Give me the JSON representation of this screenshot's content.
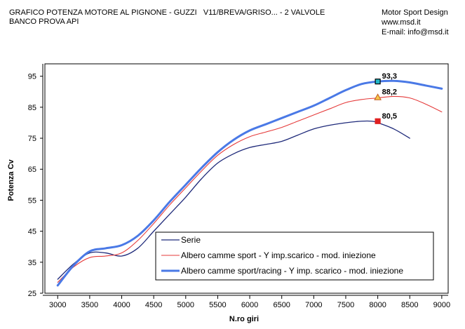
{
  "header": {
    "title_line1": "GRAFICO POTENZA MOTORE AL PIGNONE - GUZZI",
    "title_models": "V11/BREVA/GRISO... - 2 VALVOLE",
    "title_line2": "BANCO PROVA API",
    "company": "Motor Sport Design",
    "website": "www.msd.it",
    "email": "E-mail: info@msd.it"
  },
  "chart_data": {
    "type": "line",
    "title": "",
    "xlabel": "N.ro giri",
    "ylabel": "Potenza Cv",
    "xlim": [
      2800,
      9100
    ],
    "ylim": [
      25,
      99
    ],
    "xticks": [
      3000,
      3500,
      4000,
      4500,
      5000,
      5500,
      6000,
      6500,
      7000,
      7500,
      8000,
      8500,
      9000
    ],
    "yticks": [
      25,
      35,
      45,
      55,
      65,
      75,
      85,
      95
    ],
    "grid": false,
    "legend_position": "bottom-right",
    "series": [
      {
        "name": "Serie",
        "color": "#1f2a7a",
        "width": 1.3,
        "x": [
          3000,
          3250,
          3500,
          3750,
          4000,
          4250,
          4500,
          4750,
          5000,
          5250,
          5500,
          5750,
          6000,
          6250,
          6500,
          6750,
          7000,
          7250,
          7500,
          7750,
          7900,
          8000,
          8250,
          8500
        ],
        "y": [
          29.5,
          34.5,
          38,
          38,
          37,
          39.5,
          45,
          50.5,
          56,
          62,
          67,
          70,
          72,
          73,
          74,
          76,
          78,
          79.2,
          80,
          80.5,
          80.5,
          80,
          78,
          75
        ]
      },
      {
        "name": "Albero camme sport - Y imp.scarico - mod. iniezione",
        "color": "#e53a3a",
        "width": 1.1,
        "x": [
          3000,
          3250,
          3500,
          3750,
          4000,
          4250,
          4500,
          4750,
          5000,
          5250,
          5500,
          5750,
          6000,
          6250,
          6500,
          6750,
          7000,
          7250,
          7500,
          7750,
          8000,
          8250,
          8500,
          8750,
          9000
        ],
        "y": [
          28.5,
          33.5,
          36.5,
          37,
          38,
          42,
          47.5,
          53.5,
          59,
          64.5,
          69.5,
          73,
          75.5,
          77,
          78.5,
          80.5,
          82.5,
          84.5,
          86.5,
          87.5,
          88,
          88.5,
          88,
          86,
          83.5
        ]
      },
      {
        "name": "Albero camme sport/racing - Y imp. scarico - mod. iniezione",
        "color": "#4a79e6",
        "width": 3,
        "x": [
          3000,
          3250,
          3500,
          3750,
          4000,
          4250,
          4500,
          4750,
          5000,
          5250,
          5500,
          5750,
          6000,
          6250,
          6500,
          6750,
          7000,
          7250,
          7500,
          7750,
          8000,
          8250,
          8500,
          8750,
          9000
        ],
        "y": [
          27.5,
          34,
          38.5,
          39.5,
          40.5,
          43.5,
          48.5,
          54.5,
          60,
          65.5,
          70.5,
          74.5,
          77.5,
          79.5,
          81.5,
          83.5,
          85.5,
          88,
          90.5,
          92.5,
          93.3,
          93.5,
          93,
          92,
          91
        ]
      }
    ],
    "markers": [
      {
        "x": 8000,
        "y": 93.3,
        "label": "93,3",
        "shape": "square",
        "fill": "#22b8c8",
        "stroke": "#000000"
      },
      {
        "x": 8000,
        "y": 88.2,
        "label": "88,2",
        "shape": "triangle",
        "fill": "#f5c84a",
        "stroke": "#c25a1e"
      },
      {
        "x": 8000,
        "y": 80.5,
        "label": "80,5",
        "shape": "square",
        "fill": "#e02020",
        "stroke": "#e02020"
      }
    ]
  }
}
